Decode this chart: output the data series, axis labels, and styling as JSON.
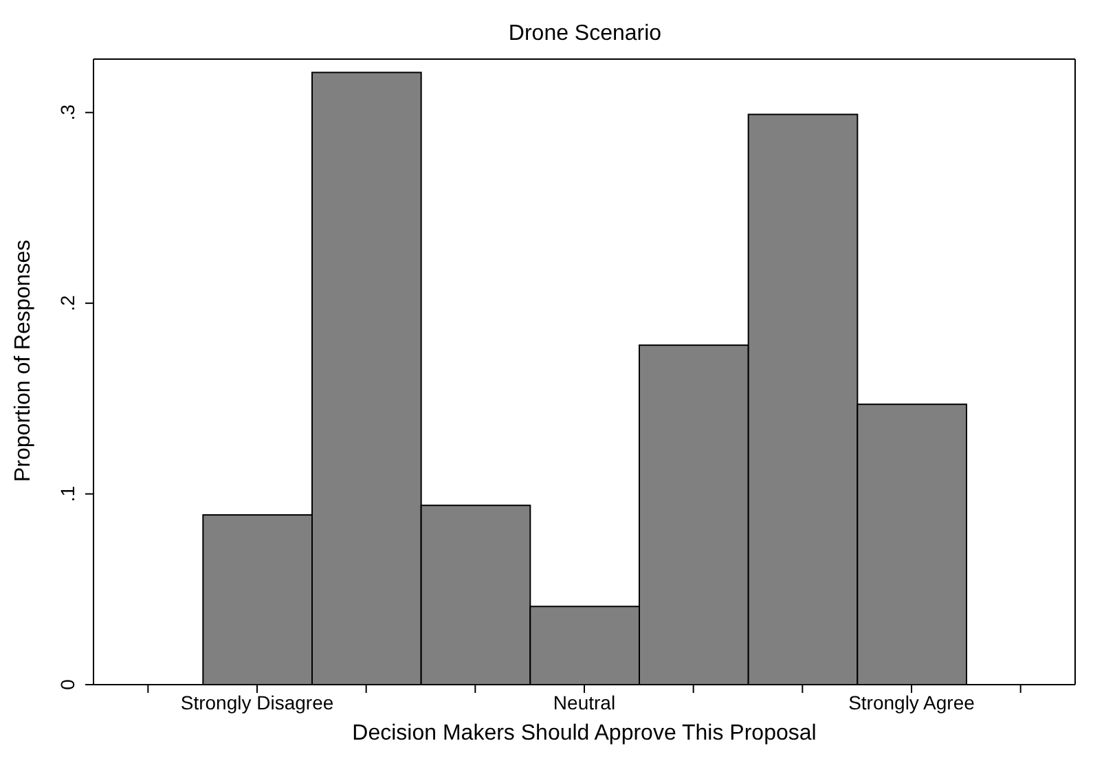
{
  "chart_data": {
    "type": "bar",
    "title": "Drone Scenario",
    "xlabel": "Decision Makers Should Approve This Proposal",
    "ylabel": "Proportion of Responses",
    "categories": [
      null,
      "Strongly Disagree",
      null,
      null,
      "Neutral",
      null,
      null,
      "Strongly Agree",
      null
    ],
    "values": [
      null,
      0.089,
      0.321,
      0.094,
      0.041,
      0.178,
      0.299,
      0.147,
      null
    ],
    "color": "#808080",
    "ylim": [
      0,
      0.328
    ],
    "yticks": [
      {
        "value": 0,
        "label": "0"
      },
      {
        "value": 0.1,
        "label": ".1"
      },
      {
        "value": 0.2,
        "label": ".2"
      },
      {
        "value": 0.3,
        "label": ".3"
      }
    ],
    "grid": false
  }
}
